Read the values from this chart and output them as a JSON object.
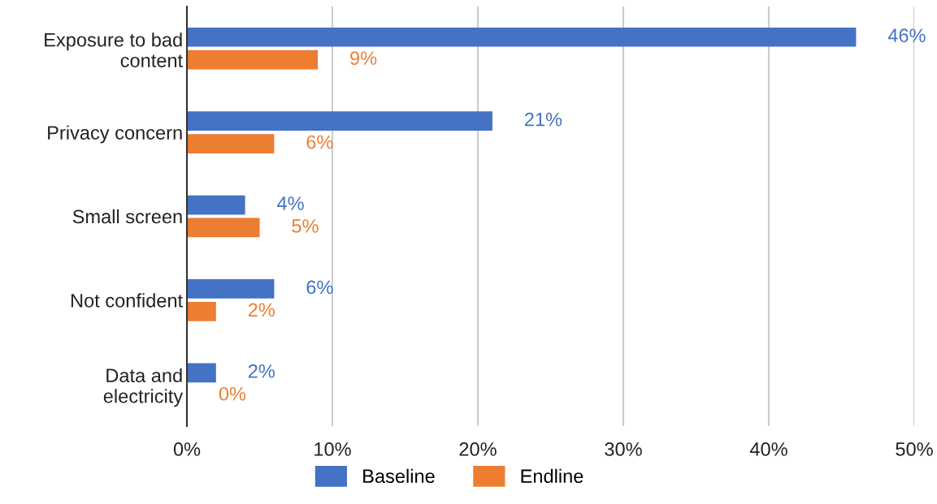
{
  "chart_data": {
    "type": "bar",
    "orientation": "horizontal",
    "categories": [
      "Exposure to bad content",
      "Privacy concern",
      "Small screen",
      "Not confident",
      "Data and electricity"
    ],
    "series": [
      {
        "name": "Baseline",
        "color": "#4472c4",
        "values": [
          46,
          21,
          4,
          6,
          2
        ],
        "value_labels": [
          "46%",
          "21%",
          "4%",
          "6%",
          "2%"
        ]
      },
      {
        "name": "Endline",
        "color": "#ed7d31",
        "values": [
          9,
          6,
          5,
          2,
          0
        ],
        "value_labels": [
          "9%",
          "6%",
          "5%",
          "2%",
          "0%"
        ]
      }
    ],
    "xlim": [
      0,
      50
    ],
    "xticks": [
      {
        "value": 0,
        "label": "0%"
      },
      {
        "value": 10,
        "label": "10%"
      },
      {
        "value": 20,
        "label": "20%"
      },
      {
        "value": 30,
        "label": "30%"
      },
      {
        "value": 40,
        "label": "40%"
      },
      {
        "value": 50,
        "label": "50%"
      }
    ],
    "grid": "x",
    "legend": "bottom"
  }
}
